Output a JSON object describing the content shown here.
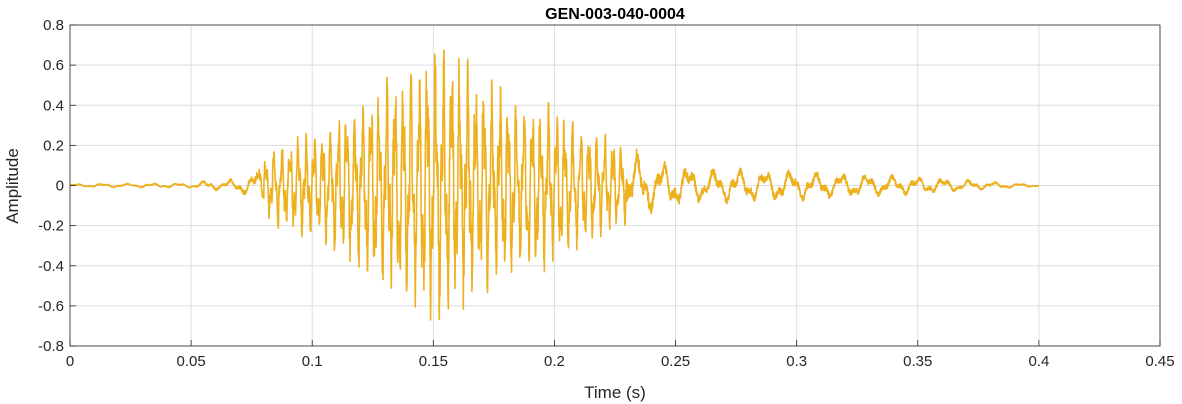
{
  "chart_data": {
    "type": "line",
    "title": "GEN-003-040-0004",
    "xlabel": "Time (s)",
    "ylabel": "Amplitude",
    "xlim": [
      0,
      0.45
    ],
    "ylim": [
      -0.8,
      0.8
    ],
    "xticks": [
      "0",
      "0.05",
      "0.1",
      "0.15",
      "0.2",
      "0.25",
      "0.3",
      "0.35",
      "0.4",
      "0.45"
    ],
    "yticks": [
      "-0.8",
      "-0.6",
      "-0.4",
      "-0.2",
      "0",
      "0.2",
      "0.4",
      "0.6",
      "0.8"
    ],
    "grid": true,
    "legend": "none",
    "line_color": "#EDB120",
    "series": [
      {
        "x": [
          0,
          0.02,
          0.05,
          0.058,
          0.062,
          0.075,
          0.085,
          0.1,
          0.12,
          0.14,
          0.152,
          0.156,
          0.165,
          0.18,
          0.2,
          0.22,
          0.24,
          0.26,
          0.3,
          0.33,
          0.36,
          0.38,
          0.4
        ],
        "envelope": [
          0.008,
          0.01,
          0.012,
          0.03,
          0.02,
          0.06,
          0.22,
          0.28,
          0.45,
          0.6,
          0.76,
          0.72,
          0.6,
          0.5,
          0.4,
          0.26,
          0.14,
          0.09,
          0.08,
          0.06,
          0.04,
          0.02,
          0.005
        ]
      }
    ]
  }
}
